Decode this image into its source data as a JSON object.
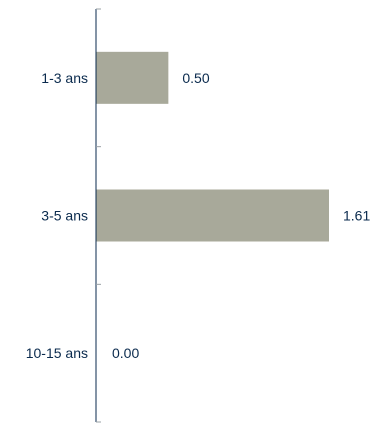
{
  "chart_data": {
    "type": "bar",
    "orientation": "horizontal",
    "categories": [
      "1-3 ans",
      "3-5 ans",
      "10-15 ans"
    ],
    "values": [
      0.5,
      1.61,
      0.0
    ],
    "value_labels": [
      "0.50",
      "1.61",
      "0.00"
    ],
    "xlim": [
      0,
      1.75
    ],
    "grid": false,
    "legend": "none",
    "bar_color": "#a8a99a",
    "axis_color": "#0a2a4d",
    "label_color": "#0a2a4d"
  }
}
